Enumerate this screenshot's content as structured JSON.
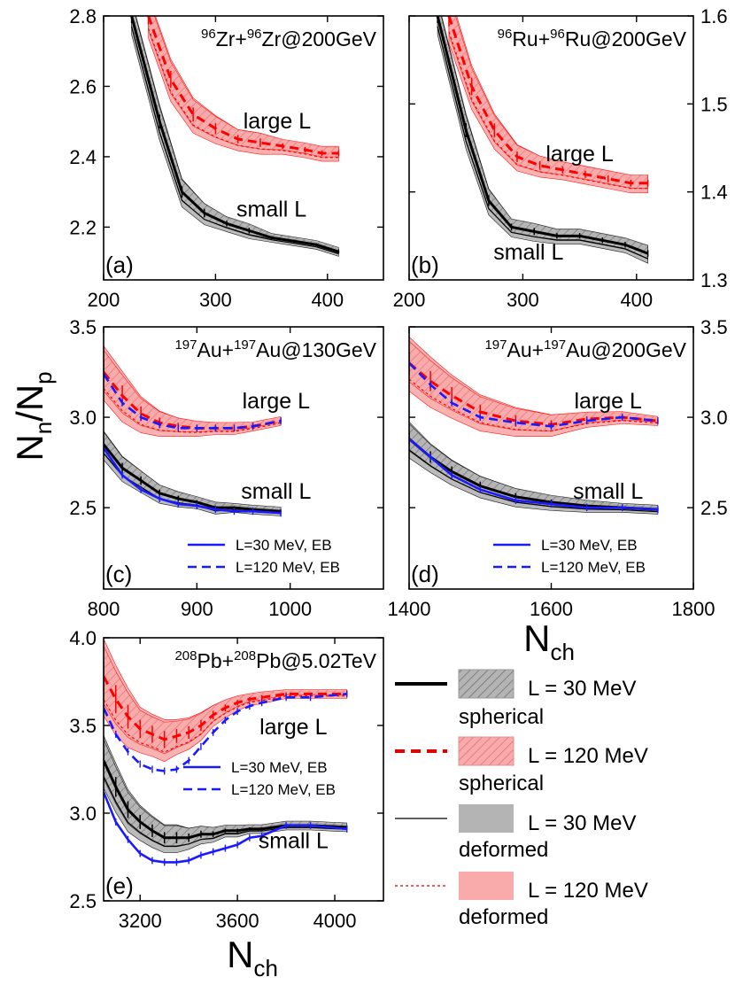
{
  "colors": {
    "spherical_small": "#000000",
    "spherical_large": "#ff0000",
    "band_small": "#b4b4b4",
    "band_large": "#f9aaaa",
    "eb": "#1a1aff"
  },
  "figure": {
    "ylabel_main": "N",
    "ylabel_sub1": "n",
    "ylabel_mid": "/N",
    "ylabel_sub2": "p",
    "xlabel_main": "N",
    "xlabel_sub": "ch",
    "legend": [
      {
        "label": "L = 30 MeV",
        "sublabel": "spherical",
        "line": "solid-thick-black",
        "fill": "hatched-gray"
      },
      {
        "label": "L = 120 MeV",
        "sublabel": "spherical",
        "line": "dashed-thick-red",
        "fill": "hatched-red"
      },
      {
        "label": "L = 30 MeV",
        "sublabel": "deformed",
        "line": "solid-thin-black",
        "fill": "solid-gray"
      },
      {
        "label": "L = 120 MeV",
        "sublabel": "deformed",
        "line": "dotted-thin-red",
        "fill": "solid-red"
      }
    ]
  },
  "chart_data": [
    {
      "type": "line",
      "panel": "(a)",
      "title": {
        "a1": "96",
        "b1": "Zr+",
        "a2": "96",
        "b2": "Zr@200GeV"
      },
      "xlim": [
        200,
        450
      ],
      "ylim": [
        2.05,
        2.8
      ],
      "xticks": [
        200,
        300,
        400
      ],
      "yticks": [
        2.2,
        2.4,
        2.6,
        2.8
      ],
      "ytick_side": "left",
      "annotations": [
        {
          "text": "large L",
          "x": 355,
          "y": 2.48
        },
        {
          "text": "small L",
          "x": 350,
          "y": 2.23
        }
      ],
      "series": [
        {
          "name": "L = 30 MeV spherical",
          "x": [
            225,
            250,
            270,
            290,
            310,
            330,
            350,
            370,
            390,
            410
          ],
          "y": [
            2.8,
            2.5,
            2.3,
            2.24,
            2.21,
            2.19,
            2.17,
            2.16,
            2.15,
            2.13
          ],
          "band": [
            0.05,
            0.05,
            0.04,
            0.03,
            0.02,
            0.02,
            0.01,
            0.01,
            0.01,
            0.01
          ]
        },
        {
          "name": "L = 120 MeV spherical",
          "x": [
            240,
            260,
            280,
            300,
            320,
            340,
            360,
            380,
            395,
            410
          ],
          "y": [
            2.8,
            2.62,
            2.52,
            2.48,
            2.45,
            2.44,
            2.43,
            2.42,
            2.41,
            2.41
          ],
          "band": [
            0.06,
            0.06,
            0.05,
            0.04,
            0.03,
            0.03,
            0.02,
            0.02,
            0.02,
            0.02
          ]
        }
      ]
    },
    {
      "type": "line",
      "panel": "(b)",
      "title": {
        "a1": "96",
        "b1": "Ru+",
        "a2": "96",
        "b2": "Ru@200GeV"
      },
      "xlim": [
        200,
        450
      ],
      "ylim": [
        1.3,
        1.6
      ],
      "xticks": [
        200,
        300,
        400
      ],
      "yticks": [
        1.3,
        1.4,
        1.5,
        1.6
      ],
      "ytick_side": "right",
      "annotations": [
        {
          "text": "large L",
          "x": 350,
          "y": 1.435
        },
        {
          "text": "small L",
          "x": 305,
          "y": 1.323
        }
      ],
      "series": [
        {
          "name": "L = 30 MeV spherical",
          "x": [
            225,
            250,
            270,
            290,
            310,
            330,
            350,
            370,
            390,
            410
          ],
          "y": [
            1.6,
            1.47,
            1.39,
            1.36,
            1.355,
            1.35,
            1.35,
            1.345,
            1.34,
            1.33
          ],
          "band": [
            0.02,
            0.02,
            0.015,
            0.01,
            0.01,
            0.008,
            0.008,
            0.008,
            0.008,
            0.01
          ]
        },
        {
          "name": "L = 120 MeV spherical",
          "x": [
            235,
            255,
            275,
            295,
            315,
            335,
            355,
            375,
            395,
            410
          ],
          "y": [
            1.6,
            1.52,
            1.47,
            1.44,
            1.43,
            1.425,
            1.42,
            1.415,
            1.41,
            1.41
          ],
          "band": [
            0.03,
            0.025,
            0.02,
            0.015,
            0.012,
            0.01,
            0.01,
            0.01,
            0.01,
            0.01
          ]
        }
      ]
    },
    {
      "type": "line",
      "panel": "(c)",
      "title": {
        "a1": "197",
        "b1": "Au+",
        "a2": "197",
        "b2": "Au@130GeV"
      },
      "xlim": [
        800,
        1100
      ],
      "ylim": [
        2.05,
        3.5
      ],
      "xticks": [
        800,
        900,
        1000
      ],
      "yticks": [
        2.5,
        3.0,
        3.5
      ],
      "ytick_side": "left",
      "annotations": [
        {
          "text": "large L",
          "x": 985,
          "y": 3.05
        },
        {
          "text": "small L",
          "x": 985,
          "y": 2.55
        }
      ],
      "eb_legend": [
        "L=30 MeV, EB",
        "L=120 MeV, EB"
      ],
      "series": [
        {
          "name": "L = 30 MeV spherical",
          "x": [
            800,
            820,
            840,
            860,
            880,
            900,
            920,
            940,
            960,
            990
          ],
          "y": [
            2.85,
            2.72,
            2.65,
            2.58,
            2.55,
            2.53,
            2.5,
            2.5,
            2.49,
            2.48
          ],
          "band": [
            0.08,
            0.07,
            0.06,
            0.05,
            0.04,
            0.03,
            0.03,
            0.02,
            0.02,
            0.02
          ]
        },
        {
          "name": "L = 120 MeV spherical",
          "x": [
            800,
            820,
            840,
            860,
            880,
            900,
            920,
            940,
            960,
            990
          ],
          "y": [
            3.25,
            3.12,
            3.02,
            2.97,
            2.95,
            2.94,
            2.94,
            2.94,
            2.95,
            2.98
          ],
          "band": [
            0.15,
            0.14,
            0.1,
            0.07,
            0.05,
            0.04,
            0.03,
            0.03,
            0.02,
            0.02
          ]
        },
        {
          "name": "L=30 MeV, EB",
          "x": [
            800,
            820,
            840,
            860,
            880,
            900,
            920,
            940,
            960,
            990
          ],
          "y": [
            2.83,
            2.68,
            2.6,
            2.55,
            2.52,
            2.51,
            2.49,
            2.48,
            2.48,
            2.47
          ]
        },
        {
          "name": "L=120 MeV, EB",
          "x": [
            800,
            820,
            840,
            860,
            880,
            900,
            920,
            940,
            960,
            990
          ],
          "y": [
            3.24,
            3.08,
            3.0,
            2.96,
            2.94,
            2.94,
            2.94,
            2.94,
            2.95,
            2.98
          ]
        }
      ]
    },
    {
      "type": "line",
      "panel": "(d)",
      "title": {
        "a1": "197",
        "b1": "Au+",
        "a2": "197",
        "b2": "Au@200GeV"
      },
      "xlim": [
        1400,
        1800
      ],
      "ylim": [
        2.05,
        3.5
      ],
      "xticks": [
        1400,
        1600,
        1800
      ],
      "yticks": [
        2.5,
        3.0,
        3.5
      ],
      "ytick_side": "right",
      "annotations": [
        {
          "text": "large L",
          "x": 1680,
          "y": 3.05
        },
        {
          "text": "small L",
          "x": 1680,
          "y": 2.55
        }
      ],
      "eb_legend": [
        "L=30 MeV, EB",
        "L=120 MeV, EB"
      ],
      "series": [
        {
          "name": "L = 30 MeV spherical",
          "x": [
            1400,
            1430,
            1460,
            1500,
            1550,
            1600,
            1650,
            1700,
            1750
          ],
          "y": [
            2.88,
            2.78,
            2.7,
            2.62,
            2.56,
            2.53,
            2.51,
            2.5,
            2.49
          ],
          "band": [
            0.1,
            0.08,
            0.07,
            0.06,
            0.05,
            0.04,
            0.03,
            0.02,
            0.02
          ]
        },
        {
          "name": "L = 120 MeV spherical",
          "x": [
            1400,
            1430,
            1460,
            1500,
            1550,
            1600,
            1650,
            1700,
            1750
          ],
          "y": [
            3.3,
            3.2,
            3.12,
            3.03,
            2.98,
            2.96,
            2.99,
            3.0,
            2.98
          ],
          "band": [
            0.15,
            0.14,
            0.12,
            0.1,
            0.08,
            0.06,
            0.04,
            0.03,
            0.02
          ]
        },
        {
          "name": "L=30 MeV, EB",
          "x": [
            1400,
            1430,
            1460,
            1500,
            1550,
            1600,
            1650,
            1700,
            1750
          ],
          "y": [
            2.88,
            2.78,
            2.68,
            2.6,
            2.54,
            2.52,
            2.5,
            2.5,
            2.49
          ]
        },
        {
          "name": "L=120 MeV, EB",
          "x": [
            1400,
            1430,
            1460,
            1500,
            1550,
            1600,
            1650,
            1700,
            1750
          ],
          "y": [
            3.3,
            3.18,
            3.08,
            3.0,
            2.97,
            2.95,
            2.98,
            3.0,
            2.98
          ]
        }
      ]
    },
    {
      "type": "line",
      "panel": "(e)",
      "title": {
        "a1": "208",
        "b1": "Pb+",
        "a2": "208",
        "b2": "Pb@5.02TeV"
      },
      "xlim": [
        3050,
        4200
      ],
      "ylim": [
        2.5,
        4.0
      ],
      "xticks": [
        3200,
        3600,
        4000
      ],
      "yticks": [
        2.5,
        3.0,
        3.5,
        4.0
      ],
      "ytick_side": "left",
      "annotations": [
        {
          "text": "large L",
          "x": 3830,
          "y": 3.45
        },
        {
          "text": "small L",
          "x": 3830,
          "y": 2.8
        }
      ],
      "eb_legend": [
        "L=30 MeV, EB",
        "L=120 MeV, EB"
      ],
      "series": [
        {
          "name": "L = 30 MeV spherical",
          "x": [
            3050,
            3100,
            3150,
            3200,
            3250,
            3300,
            3350,
            3400,
            3450,
            3500,
            3550,
            3600,
            3650,
            3700,
            3800,
            3900,
            4050
          ],
          "y": [
            3.3,
            3.15,
            3.02,
            2.95,
            2.9,
            2.86,
            2.86,
            2.86,
            2.88,
            2.88,
            2.9,
            2.9,
            2.91,
            2.91,
            2.93,
            2.93,
            2.92
          ],
          "band": [
            0.15,
            0.14,
            0.12,
            0.1,
            0.09,
            0.08,
            0.08,
            0.06,
            0.05,
            0.04,
            0.03,
            0.03,
            0.02,
            0.02,
            0.02,
            0.02,
            0.02
          ]
        },
        {
          "name": "L = 120 MeV spherical",
          "x": [
            3050,
            3100,
            3150,
            3200,
            3250,
            3300,
            3350,
            3400,
            3450,
            3500,
            3550,
            3600,
            3650,
            3700,
            3800,
            3900,
            4050
          ],
          "y": [
            3.78,
            3.65,
            3.55,
            3.48,
            3.45,
            3.42,
            3.44,
            3.46,
            3.5,
            3.56,
            3.6,
            3.63,
            3.65,
            3.66,
            3.68,
            3.68,
            3.68
          ],
          "band": [
            0.22,
            0.2,
            0.17,
            0.13,
            0.12,
            0.12,
            0.1,
            0.09,
            0.08,
            0.06,
            0.05,
            0.04,
            0.03,
            0.03,
            0.02,
            0.02,
            0.02
          ]
        },
        {
          "name": "L=30 MeV, EB",
          "x": [
            3050,
            3100,
            3150,
            3200,
            3250,
            3300,
            3350,
            3400,
            3450,
            3500,
            3550,
            3600,
            3650,
            3700,
            3800,
            3900,
            4050
          ],
          "y": [
            3.12,
            2.95,
            2.85,
            2.77,
            2.73,
            2.72,
            2.72,
            2.73,
            2.76,
            2.78,
            2.8,
            2.82,
            2.86,
            2.87,
            2.93,
            2.93,
            2.91
          ]
        },
        {
          "name": "L=120 MeV, EB",
          "x": [
            3050,
            3100,
            3150,
            3200,
            3250,
            3300,
            3350,
            3400,
            3450,
            3500,
            3550,
            3600,
            3650,
            3700,
            3800,
            3900,
            4050
          ],
          "y": [
            3.6,
            3.45,
            3.35,
            3.28,
            3.25,
            3.24,
            3.25,
            3.3,
            3.38,
            3.46,
            3.53,
            3.58,
            3.61,
            3.63,
            3.66,
            3.66,
            3.68
          ]
        }
      ]
    }
  ]
}
